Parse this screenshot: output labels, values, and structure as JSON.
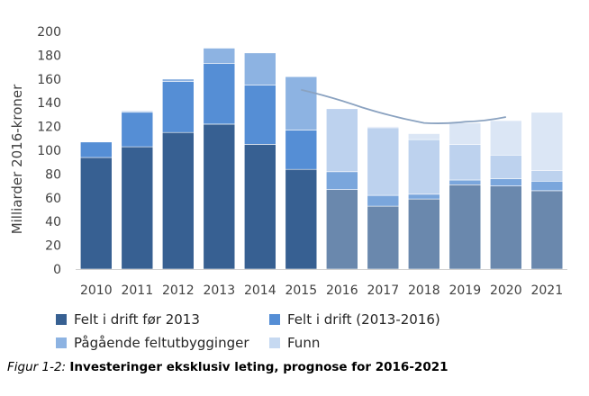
{
  "chart_data": {
    "type": "bar",
    "stacked": true,
    "ylabel": "Milliarder 2016-kroner",
    "xlabel": "",
    "ylim": [
      0,
      200
    ],
    "yticks": [
      0,
      20,
      40,
      60,
      80,
      100,
      120,
      140,
      160,
      180,
      200
    ],
    "grid": false,
    "legend_placement": "bottom",
    "categories": [
      "2010",
      "2011",
      "2012",
      "2013",
      "2014",
      "2015",
      "2016",
      "2017",
      "2018",
      "2019",
      "2020",
      "2021"
    ],
    "forecast_from_index": 6,
    "series": [
      {
        "name": "Felt i drift før 2013",
        "color": "#376092",
        "forecast_color": "#6a88ad",
        "values": [
          94,
          103,
          115,
          122,
          105,
          84,
          67,
          53,
          59,
          71,
          70,
          66
        ]
      },
      {
        "name": "Felt i drift (2013-2016)",
        "color": "#558ed5",
        "forecast_color": "#7aa6dc",
        "values": [
          13,
          29,
          43,
          51,
          50,
          33,
          15,
          9,
          4,
          4,
          6,
          8
        ]
      },
      {
        "name": "Pågående feltutbygginger",
        "color": "#8db3e2",
        "forecast_color": "#bdd2ee",
        "values": [
          0,
          1,
          2,
          13,
          27,
          45,
          53,
          57,
          46,
          30,
          20,
          9
        ]
      },
      {
        "name": "Funn",
        "color": "#c6d9f1",
        "forecast_color": "#dbe6f5",
        "values": [
          0,
          0,
          0,
          0,
          0,
          0,
          0,
          1,
          5,
          18,
          29,
          49
        ]
      }
    ],
    "trend_line": {
      "x_start": "2015",
      "x_end": "2020",
      "points": [
        [
          2015,
          151
        ],
        [
          2016.5,
          136
        ],
        [
          2018,
          123
        ],
        [
          2019,
          124
        ],
        [
          2020,
          128
        ]
      ],
      "color": "#8aa2c0"
    }
  },
  "caption": {
    "prefix": "Figur 1-2:",
    "text": "Investeringer eksklusiv leting, prognose for 2016-2021"
  }
}
